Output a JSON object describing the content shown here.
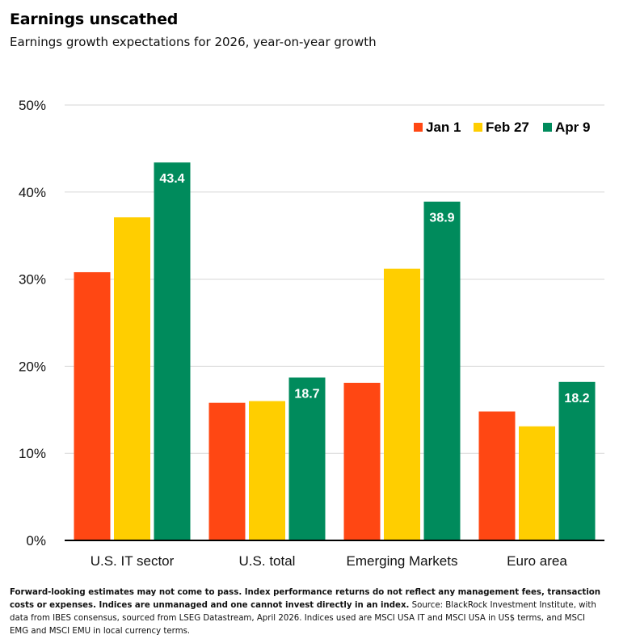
{
  "header": {
    "title": "Earnings unscathed",
    "subtitle": "Earnings growth expectations for 2026, year-on-year growth"
  },
  "chart_data": {
    "type": "bar",
    "title": "Earnings unscathed",
    "subtitle": "Earnings growth expectations for 2026, year-on-year growth",
    "categories": [
      "U.S. IT sector",
      "U.S. total",
      "Emerging Markets",
      "Euro area"
    ],
    "series": [
      {
        "name": "Jan 1",
        "color": "#ff4713",
        "values": [
          30.8,
          15.8,
          18.1,
          14.8
        ]
      },
      {
        "name": "Feb 27",
        "color": "#ffce00",
        "values": [
          37.1,
          16.0,
          31.2,
          13.1
        ]
      },
      {
        "name": "Apr 9",
        "color": "#008b5c",
        "values": [
          43.4,
          18.7,
          38.9,
          18.2
        ]
      }
    ],
    "data_labels": {
      "series": "Apr 9",
      "values": [
        "43.4",
        "18.7",
        "38.9",
        "18.2"
      ]
    },
    "ylim": [
      0,
      50
    ],
    "yticks": [
      0,
      10,
      20,
      30,
      40,
      50
    ],
    "ytick_labels": [
      "0%",
      "10%",
      "20%",
      "30%",
      "40%",
      "50%"
    ],
    "xlabel": "",
    "ylabel": "",
    "grid": true,
    "legend_position": "top-right"
  },
  "footnote": {
    "bold_text": "Forward-looking estimates may not come to pass. Index performance returns do not reflect any management fees, transaction costs or expenses. Indices are unmanaged and one cannot invest directly in an index.",
    "text": " Source: BlackRock Investment Institute, with data from IBES consensus, sourced from LSEG Datastream, April 2026. Indices used are MSCI USA IT and MSCI USA in US$ terms, and MSCI EMG and MSCI EMU in local currency terms."
  }
}
